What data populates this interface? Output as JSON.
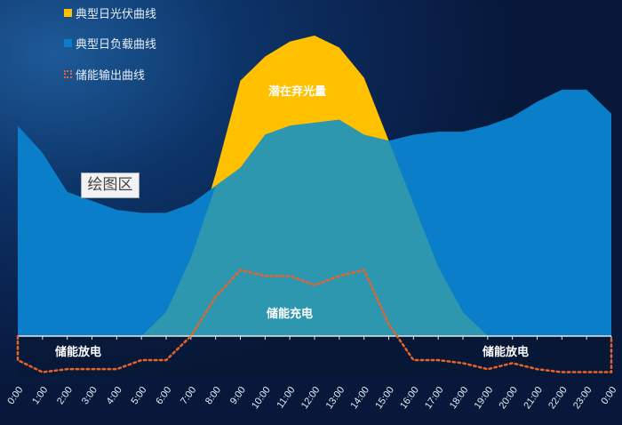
{
  "chart_data": {
    "type": "area",
    "title": "",
    "xlabel": "",
    "ylabel": "",
    "categories": [
      "0:00",
      "1:00",
      "2:00",
      "3:00",
      "4:00",
      "5:00",
      "6:00",
      "7:00",
      "8:00",
      "9:00",
      "10:00",
      "11:00",
      "12:00",
      "13:00",
      "14:00",
      "15:00",
      "16:00",
      "17:00",
      "18:00",
      "19:00",
      "20:00",
      "21:00",
      "22:00",
      "23:00",
      "0:00"
    ],
    "ylim": [
      -30,
      105
    ],
    "grid": false,
    "legend_position": "top-left",
    "series": [
      {
        "name": "典型日光伏曲线",
        "style": "area",
        "color": "#ffc000",
        "values": [
          0,
          0,
          0,
          0,
          0,
          0,
          8,
          26,
          54,
          85,
          93,
          98,
          100,
          96,
          86,
          65,
          44,
          23,
          8,
          0,
          0,
          0,
          0,
          0,
          0
        ]
      },
      {
        "name": "典型日负载曲线",
        "style": "area",
        "color": "#0a7ec8",
        "values": [
          70,
          61,
          48,
          45,
          42,
          41,
          41,
          44,
          50,
          56,
          67,
          70,
          71,
          72,
          67,
          65,
          67,
          68,
          68,
          70,
          73,
          78,
          82,
          82,
          74
        ]
      },
      {
        "name": "储能输出曲线",
        "style": "dotted-line",
        "color": "#e8632a",
        "values": [
          -8,
          -12,
          -11,
          -11,
          -11,
          -8,
          -8,
          0,
          13,
          22,
          20,
          20,
          17,
          20,
          22,
          4,
          -8,
          -8,
          -9,
          -11,
          -9,
          -11,
          -12,
          -12,
          -12
        ]
      }
    ],
    "overlap_color": "#2e97b0",
    "annotations": {
      "curtailment": "潜在弃光量",
      "charging": "储能充电",
      "discharge_left": "储能放电",
      "discharge_right": "储能放电",
      "plot_area": "绘图区"
    }
  }
}
